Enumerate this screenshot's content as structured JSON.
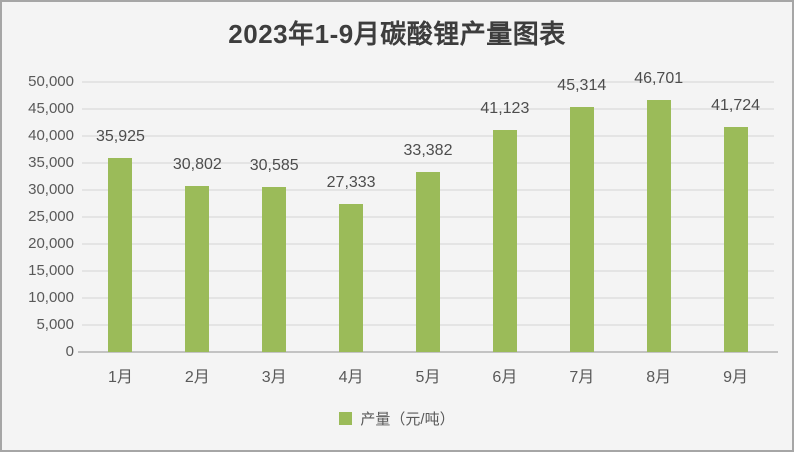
{
  "chart_data": {
    "type": "bar",
    "title": "2023年1-9月碳酸锂产量图表",
    "categories": [
      "1月",
      "2月",
      "3月",
      "4月",
      "5月",
      "6月",
      "7月",
      "8月",
      "9月"
    ],
    "values": [
      35925,
      30802,
      30585,
      27333,
      33382,
      41123,
      45314,
      46701,
      41724
    ],
    "data_labels": [
      "35,925",
      "30,802",
      "30,585",
      "27,333",
      "33,382",
      "41,123",
      "45,314",
      "46,701",
      "41,724"
    ],
    "xlabel": "",
    "ylabel": "",
    "ylim": [
      0,
      50000
    ],
    "y_step": 5000,
    "y_ticks": [
      "0",
      "5,000",
      "10,000",
      "15,000",
      "20,000",
      "25,000",
      "30,000",
      "35,000",
      "40,000",
      "45,000",
      "50,000"
    ],
    "grid": true,
    "legend": {
      "label": "产量（元/吨）",
      "position": "bottom"
    }
  },
  "colors": {
    "bar": "#9BBB59",
    "background": "#F4F4F4",
    "gridline": "#E4E4E4",
    "axis_line": "#C3C3C3",
    "tick_text": "#595959",
    "value_text": "#4D4D4D",
    "title_text": "#3D3D3D",
    "frame_border": "#A6A6A6"
  }
}
